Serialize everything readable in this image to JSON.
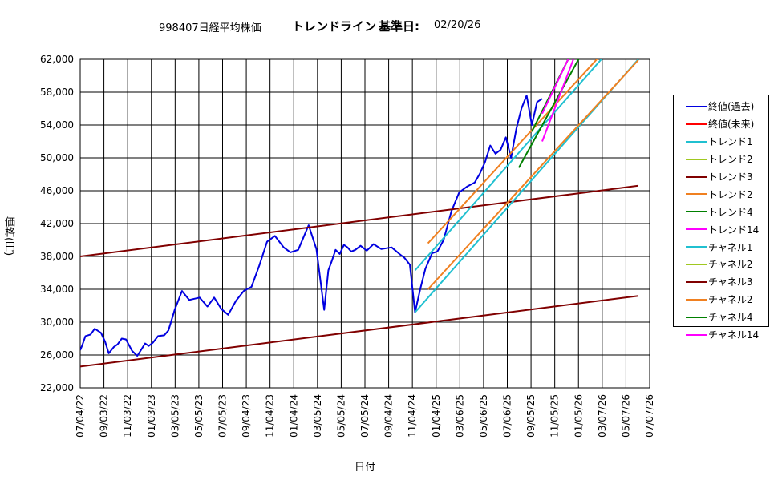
{
  "header": {
    "code_name": "998407日経平均株価",
    "chart_name": "トレンドライン",
    "base_date_label": "基準日:",
    "base_date": "02/20/26"
  },
  "chart_data": {
    "type": "line",
    "ylabel": "価格(円)",
    "xlabel": "日付",
    "ylim": [
      22000,
      62000
    ],
    "y_ticks": [
      "22,000",
      "26,000",
      "30,000",
      "34,000",
      "38,000",
      "42,000",
      "46,000",
      "50,000",
      "54,000",
      "58,000",
      "62,000"
    ],
    "x_ticks": [
      "07/04/22",
      "09/03/22",
      "11/03/22",
      "01/03/23",
      "03/05/23",
      "05/05/23",
      "07/05/23",
      "09/04/23",
      "11/04/23",
      "01/04/24",
      "03/05/24",
      "05/05/24",
      "07/05/24",
      "09/04/24",
      "11/04/24",
      "01/04/25",
      "03/06/25",
      "05/06/25",
      "07/06/25",
      "09/05/25",
      "11/05/25",
      "01/05/26",
      "03/07/26",
      "05/07/26",
      "07/07/26"
    ],
    "grid": true,
    "legend_position": "right",
    "series": [
      {
        "name": "終値(過去)",
        "color": "#0000e0",
        "x": [
          0,
          4,
          10,
          20,
          28,
          40,
          48,
          55,
          65,
          72,
          80,
          88,
          100,
          110,
          118,
          125,
          132,
          140,
          150,
          162,
          170,
          182,
          196,
          210,
          230,
          245,
          258,
          272,
          285,
          300,
          315,
          330,
          345,
          360,
          375,
          392,
          405,
          420,
          440,
          455,
          470,
          478,
          485,
          492,
          500,
          508,
          515,
          522,
          530,
          540,
          552,
          565,
          580,
          600,
          615,
          625,
          635,
          645,
          655,
          665,
          678,
          688,
          700,
          715,
          730,
          745,
          760,
          770,
          780,
          790,
          800,
          810,
          820,
          830,
          840,
          850,
          860,
          870,
          880,
          890
        ],
        "y": [
          26600,
          27200,
          28300,
          28500,
          29200,
          28700,
          27600,
          26200,
          27000,
          27300,
          28000,
          27900,
          26500,
          25900,
          26700,
          27400,
          27100,
          27500,
          28300,
          28400,
          29000,
          31500,
          33800,
          32700,
          33000,
          31900,
          33000,
          31600,
          30900,
          32600,
          33800,
          34300,
          36900,
          39800,
          40500,
          39100,
          38500,
          38800,
          41800,
          38900,
          31500,
          36300,
          37500,
          38800,
          38300,
          39400,
          39100,
          38600,
          38800,
          39300,
          38700,
          39500,
          38900,
          39100,
          38300,
          37800,
          37000,
          31200,
          34000,
          36500,
          38400,
          38600,
          40000,
          43500,
          45800,
          46500,
          47000,
          48100,
          49500,
          51500,
          50500,
          51000,
          52500,
          50000,
          53500,
          56000,
          57600,
          54000,
          56800,
          57200
        ]
      },
      {
        "name": "トレンド3",
        "color": "#800000",
        "x": [
          0,
          1075
        ],
        "y": [
          24600,
          33200
        ]
      },
      {
        "name": "チャネル3",
        "color": "#800000",
        "x": [
          0,
          1075
        ],
        "y": [
          38000,
          46600
        ]
      },
      {
        "name": "トレンド1",
        "color": "#20c0d0",
        "x": [
          645,
          1075
        ],
        "y": [
          31200,
          62000
        ]
      },
      {
        "name": "チャネル1",
        "color": "#20c0d0",
        "x": [
          645,
          1075
        ],
        "y": [
          36300,
          67100
        ]
      },
      {
        "name": "トレンド2",
        "color": "#f08020",
        "x": [
          670,
          1075
        ],
        "y": [
          34000,
          61900
        ]
      },
      {
        "name": "チャネル2",
        "color": "#f08020",
        "x": [
          670,
          1075
        ],
        "y": [
          39600,
          67500
        ]
      },
      {
        "name": "トレンド4",
        "color": "#008000",
        "x": [
          845,
          960
        ],
        "y": [
          48800,
          62000
        ]
      },
      {
        "name": "チャネル4",
        "color": "#008000",
        "x": [
          870,
          940
        ],
        "y": [
          53200,
          62000
        ]
      },
      {
        "name": "トレンド14",
        "color": "#ff00ff",
        "x": [
          890,
          950
        ],
        "y": [
          52000,
          62000
        ]
      },
      {
        "name": "チャネル14",
        "color": "#ff00ff",
        "x": [
          890,
          940
        ],
        "y": [
          55400,
          62000
        ]
      }
    ]
  },
  "legend": {
    "items": [
      {
        "label": "終値(過去)",
        "color": "#0000e0"
      },
      {
        "label": "終値(未来)",
        "color": "#ff0000"
      },
      {
        "label": "トレンド1",
        "color": "#20c0d0"
      },
      {
        "label": "トレンド2",
        "color": "#a0c820"
      },
      {
        "label": "トレンド3",
        "color": "#800000"
      },
      {
        "label": "トレンド2",
        "color": "#f08020"
      },
      {
        "label": "トレンド4",
        "color": "#008000"
      },
      {
        "label": "トレンド14",
        "color": "#ff00ff"
      },
      {
        "label": "チャネル1",
        "color": "#20c0d0"
      },
      {
        "label": "チャネル2",
        "color": "#a0c820"
      },
      {
        "label": "チャネル3",
        "color": "#800000"
      },
      {
        "label": "チャネル2",
        "color": "#f08020"
      },
      {
        "label": "チャネル4",
        "color": "#008000"
      },
      {
        "label": "チャネル14",
        "color": "#ff00ff"
      }
    ]
  }
}
